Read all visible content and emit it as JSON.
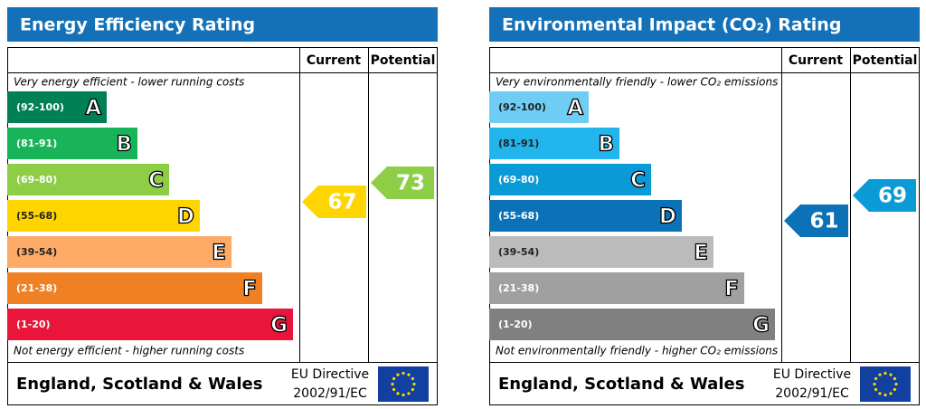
{
  "panels": [
    {
      "title": "Energy Efficiency Rating",
      "headers": [
        "Current",
        "Potential"
      ],
      "top_note": "Very energy efficient - lower running costs",
      "bottom_note": "Not energy efficient - higher running costs",
      "bands": [
        {
          "range": "(92-100)",
          "letter": "A",
          "color": "#008054"
        },
        {
          "range": "(81-91)",
          "letter": "B",
          "color": "#19b459"
        },
        {
          "range": "(69-80)",
          "letter": "C",
          "color": "#8dce46"
        },
        {
          "range": "(55-68)",
          "letter": "D",
          "color": "#ffd500"
        },
        {
          "range": "(39-54)",
          "letter": "E",
          "color": "#fcaa65"
        },
        {
          "range": "(21-38)",
          "letter": "F",
          "color": "#ef8023"
        },
        {
          "range": "(1-20)",
          "letter": "G",
          "color": "#e9153b"
        }
      ],
      "current": 67,
      "potential": 73,
      "footer": {
        "region": "England, Scotland & Wales",
        "directive": "EU Directive",
        "code": "2002/91/EC"
      }
    },
    {
      "title": "Environmental Impact (CO₂) Rating",
      "headers": [
        "Current",
        "Potential"
      ],
      "top_note": "Very environmentally friendly - lower CO₂ emissions",
      "bottom_note": "Not environmentally friendly - higher CO₂ emissions",
      "bands": [
        {
          "range": "(92-100)",
          "letter": "A",
          "color": "#6fcdf5"
        },
        {
          "range": "(81-91)",
          "letter": "B",
          "color": "#22b5eb"
        },
        {
          "range": "(69-80)",
          "letter": "C",
          "color": "#0a9ad6"
        },
        {
          "range": "(55-68)",
          "letter": "D",
          "color": "#0c72b8"
        },
        {
          "range": "(39-54)",
          "letter": "E",
          "color": "#bbbbbb"
        },
        {
          "range": "(21-38)",
          "letter": "F",
          "color": "#a0a0a0"
        },
        {
          "range": "(1-20)",
          "letter": "G",
          "color": "#808080"
        }
      ],
      "current": 61,
      "potential": 69,
      "footer": {
        "region": "England, Scotland & Wales",
        "directive": "EU Directive",
        "code": "2002/91/EC"
      }
    }
  ]
}
